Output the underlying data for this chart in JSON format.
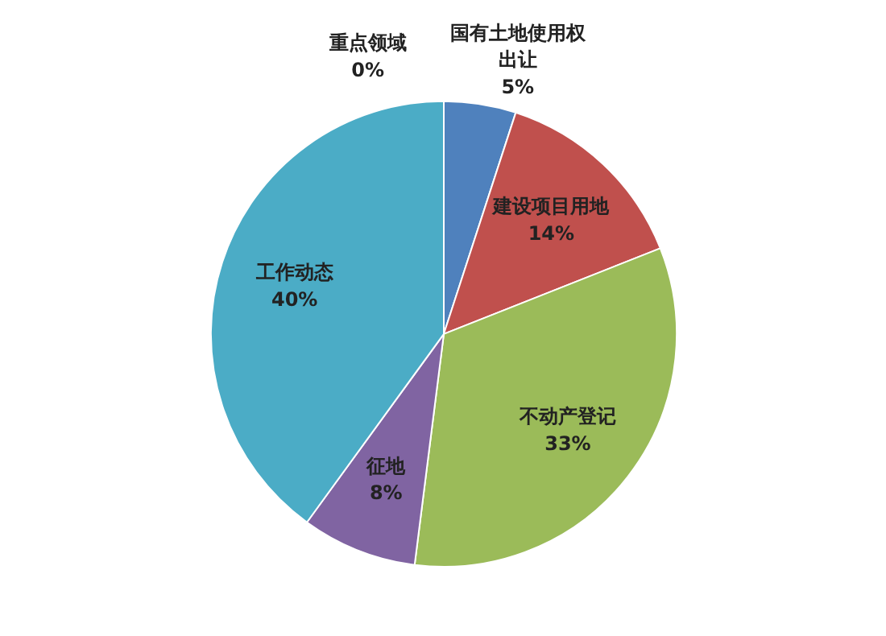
{
  "chart_data": {
    "type": "pie",
    "categories": [
      "国有土地使用权出让",
      "建设项目用地",
      "不动产登记",
      "征地",
      "工作动态",
      "重点领域"
    ],
    "values": [
      5,
      14,
      33,
      8,
      40,
      0
    ],
    "value_labels": [
      "5%",
      "14%",
      "33%",
      "8%",
      "40%",
      "0%"
    ],
    "colors": [
      "#4f81bd",
      "#c0504d",
      "#9bbb59",
      "#8064a2",
      "#4bacc6",
      "#f79646"
    ],
    "legend": false
  }
}
